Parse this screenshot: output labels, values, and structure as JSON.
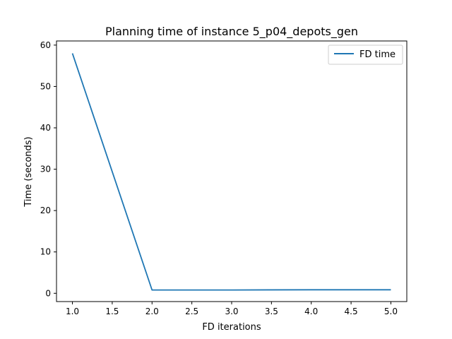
{
  "chart_data": {
    "type": "line",
    "title": "Planning time of instance 5_p04_depots_gen",
    "xlabel": "FD iterations",
    "ylabel": "Time (seconds)",
    "xlim": [
      0.8,
      5.2
    ],
    "ylim": [
      -2.0,
      61.0
    ],
    "xticks": [
      1.0,
      1.5,
      2.0,
      2.5,
      3.0,
      3.5,
      4.0,
      4.5,
      5.0
    ],
    "xtick_labels": [
      "1.0",
      "1.5",
      "2.0",
      "2.5",
      "3.0",
      "3.5",
      "4.0",
      "4.5",
      "5.0"
    ],
    "yticks": [
      0,
      10,
      20,
      30,
      40,
      50,
      60
    ],
    "ytick_labels": [
      "0",
      "10",
      "20",
      "30",
      "40",
      "50",
      "60"
    ],
    "grid": false,
    "legend_position": "top-right",
    "series": [
      {
        "name": "FD time",
        "color": "#1f77b4",
        "x": [
          1,
          2,
          3,
          4,
          5
        ],
        "y": [
          58.0,
          0.8,
          0.8,
          0.85,
          0.85
        ]
      }
    ]
  }
}
